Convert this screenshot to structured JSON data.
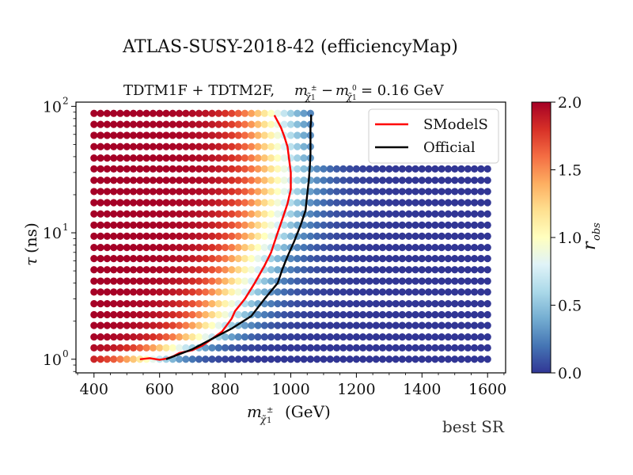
{
  "figure": {
    "title": "ATLAS-SUSY-2018-42 (efficiencyMap)",
    "footnote": "best SR"
  },
  "chart_data": {
    "type": "scatter",
    "title": "TDTM1F + TDTM2F, m(χ̃1±) − m(χ̃1⁰) = 0.16 GeV",
    "title_plain": "TDTM1F + TDTM2F,",
    "title_math": "= 0.16 GeV",
    "xlabel": "(GeV)",
    "ylabel": "(ns)",
    "x_scale": "linear",
    "y_scale": "log",
    "xlim": [
      345,
      1655
    ],
    "ylim": [
      0.78,
      108
    ],
    "x_ticks": [
      400,
      600,
      800,
      1000,
      1200,
      1400,
      1600
    ],
    "y_ticks": [
      {
        "value": 1,
        "label": "10",
        "exp": "0"
      },
      {
        "value": 10,
        "label": "10",
        "exp": "1"
      },
      {
        "value": 100,
        "label": "10",
        "exp": "2"
      }
    ],
    "colorbar": {
      "label": "r",
      "label_sub": "obs",
      "range": [
        0.0,
        2.0
      ],
      "ticks": [
        "0.0",
        "0.5",
        "1.0",
        "1.5",
        "2.0"
      ],
      "colormap": "RdYlBu_r",
      "colors": [
        "#313695",
        "#4575b4",
        "#74add1",
        "#abd9e9",
        "#e0f3f8",
        "#ffffbf",
        "#fee090",
        "#fdae61",
        "#f46d43",
        "#d73027",
        "#a50026"
      ]
    },
    "grid": {
      "x_start": 400,
      "x_step": 20,
      "x_end": 1600,
      "y_values": [
        1.0,
        1.23,
        1.5,
        1.85,
        2.25,
        2.75,
        3.4,
        4.15,
        5.1,
        6.25,
        7.65,
        9.4,
        11.5,
        14.1,
        17.3,
        21.2,
        26.0,
        32.0,
        39.0,
        48.0,
        59.0,
        72.0,
        88.0
      ],
      "x_max_upper_rows": 1060,
      "upper_rows_min_y": 39.0,
      "r_obs_model": {
        "transition_centers": [
          [
            1.0,
            560
          ],
          [
            1.23,
            640
          ],
          [
            1.5,
            720
          ],
          [
            1.85,
            760
          ],
          [
            2.25,
            790
          ],
          [
            2.75,
            810
          ],
          [
            3.4,
            830
          ],
          [
            4.15,
            850
          ],
          [
            5.1,
            870
          ],
          [
            6.25,
            880
          ],
          [
            7.65,
            900
          ],
          [
            9.4,
            920
          ],
          [
            11.5,
            930
          ],
          [
            14.1,
            940
          ],
          [
            17.3,
            950
          ],
          [
            21.2,
            960
          ],
          [
            26.0,
            965
          ],
          [
            32.0,
            965
          ],
          [
            39.0,
            960
          ],
          [
            48.0,
            955
          ],
          [
            59.0,
            950
          ],
          [
            72.0,
            945
          ],
          [
            88.0,
            940
          ]
        ],
        "width": 140
      }
    },
    "series": [
      {
        "name": "SModelS",
        "color": "#ff0000",
        "x": [
          540,
          570,
          600,
          620,
          640,
          660,
          700,
          730,
          760,
          790,
          820,
          830,
          860,
          890,
          920,
          940,
          960,
          975,
          990,
          1000,
          1000,
          995,
          990,
          980,
          970,
          960,
          950
        ],
        "y": [
          1.0,
          1.02,
          0.99,
          1.01,
          1.05,
          1.12,
          1.18,
          1.28,
          1.45,
          1.65,
          2.1,
          2.4,
          3.0,
          4.0,
          5.5,
          7.0,
          10.0,
          13.0,
          17.0,
          22.0,
          30.0,
          38.0,
          48.0,
          58.0,
          68.0,
          76.0,
          85.0
        ]
      },
      {
        "name": "Official",
        "color": "#000000",
        "x": [
          620,
          700,
          760,
          820,
          880,
          920,
          960,
          975,
          990,
          1010,
          1030,
          1045,
          1050,
          1055,
          1058,
          1060,
          1060,
          1060,
          1062,
          1062
        ],
        "y": [
          1.0,
          1.2,
          1.45,
          1.75,
          2.2,
          3.0,
          4.0,
          5.2,
          6.5,
          8.5,
          11.5,
          15.0,
          20.0,
          26.0,
          33.0,
          42.0,
          55.0,
          68.0,
          78.0,
          86.0
        ]
      }
    ],
    "legend": {
      "placement": "top-right"
    }
  }
}
